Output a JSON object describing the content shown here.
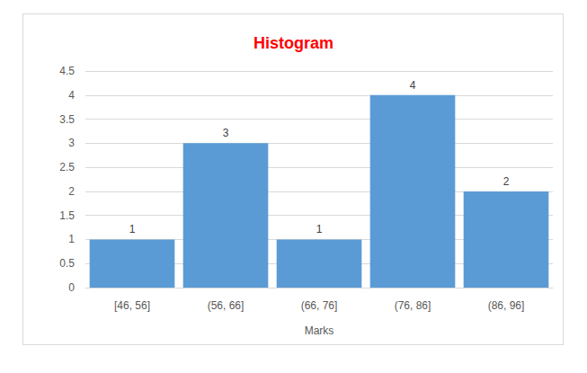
{
  "chart_data": {
    "type": "bar",
    "title": "Histogram",
    "x_label": "Marks",
    "categories": [
      "[46, 56]",
      "(56, 66]",
      "(66, 76]",
      "(76, 86]",
      "(86, 96]"
    ],
    "values": [
      1,
      3,
      1,
      4,
      2
    ],
    "color": "#5b9bd5",
    "ylim": [
      0,
      4.5
    ],
    "yticks": [
      0,
      0.5,
      1,
      1.5,
      2,
      2.5,
      3,
      3.5,
      4,
      4.5
    ],
    "grid": true,
    "data_labels": true
  }
}
